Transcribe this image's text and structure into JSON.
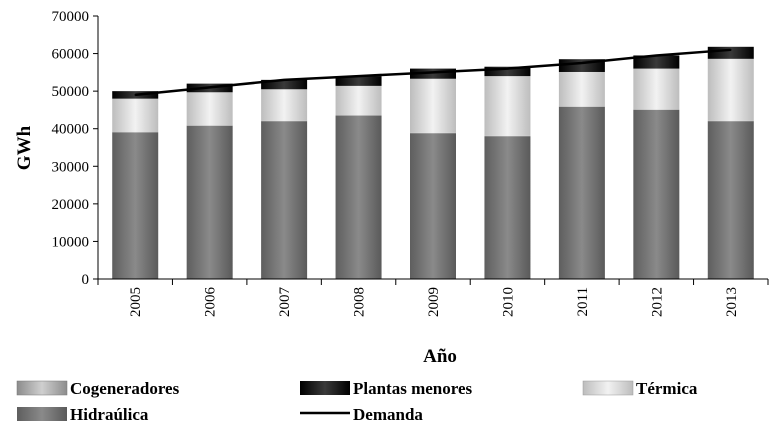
{
  "chart_data": {
    "type": "bar",
    "stacked": true,
    "categories": [
      "2005",
      "2006",
      "2007",
      "2008",
      "2009",
      "2010",
      "2011",
      "2012",
      "2013"
    ],
    "series": [
      {
        "name": "Hidraúlica",
        "values": [
          39000,
          40800,
          42000,
          43500,
          38800,
          38000,
          45800,
          45000,
          42000
        ]
      },
      {
        "name": "Cogeneradores",
        "values": [
          100,
          100,
          100,
          100,
          100,
          100,
          100,
          100,
          100
        ]
      },
      {
        "name": "Térmica",
        "values": [
          8900,
          8800,
          8400,
          7800,
          14400,
          15900,
          9200,
          10900,
          16500
        ]
      },
      {
        "name": "Plantas menores",
        "values": [
          2000,
          2300,
          2500,
          2600,
          2700,
          2500,
          3400,
          3500,
          3200
        ]
      }
    ],
    "line": {
      "name": "Demanda",
      "values": [
        49000,
        51000,
        53000,
        54000,
        55000,
        56000,
        57500,
        59500,
        61000
      ]
    },
    "ylabel": "GWh",
    "xlabel": "Año",
    "ylim": [
      0,
      70000
    ],
    "yticks": [
      "0",
      "10000",
      "20000",
      "30000",
      "40000",
      "50000",
      "60000",
      "70000"
    ],
    "legend_position": "bottom",
    "legend": [
      "Cogeneradores",
      "Plantas menores",
      "Térmica",
      "Hidraúlica",
      "Demanda"
    ],
    "colors": {
      "Hidraúlica": "#7a7a7a",
      "Cogeneradores": "#a8a8a8",
      "Térmica": "#d6d6d6",
      "Plantas menores": "#111111",
      "Demanda": "#000000"
    }
  }
}
